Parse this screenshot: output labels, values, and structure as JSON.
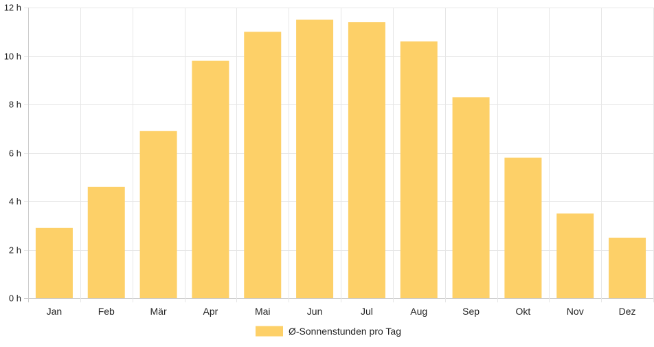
{
  "chart_data": {
    "type": "bar",
    "categories": [
      "Jan",
      "Feb",
      "Mär",
      "Apr",
      "Mai",
      "Jun",
      "Jul",
      "Aug",
      "Sep",
      "Okt",
      "Nov",
      "Dez"
    ],
    "series": [
      {
        "name": "Ø-Sonnenstunden pro Tag",
        "values": [
          2.9,
          4.6,
          6.9,
          9.8,
          11.0,
          11.5,
          11.4,
          10.6,
          8.3,
          5.8,
          3.5,
          2.5
        ],
        "color": "#fdd068"
      }
    ],
    "ylim": [
      0,
      12
    ],
    "yticks": [
      0,
      2,
      4,
      6,
      8,
      10,
      12
    ],
    "ytick_suffix": " h",
    "grid": true,
    "legend_position": "bottom"
  },
  "colors": {
    "bar_fill": "#fdd068",
    "grid": "#e6e6e6",
    "axis": "#cccccc",
    "text": "#222222"
  }
}
